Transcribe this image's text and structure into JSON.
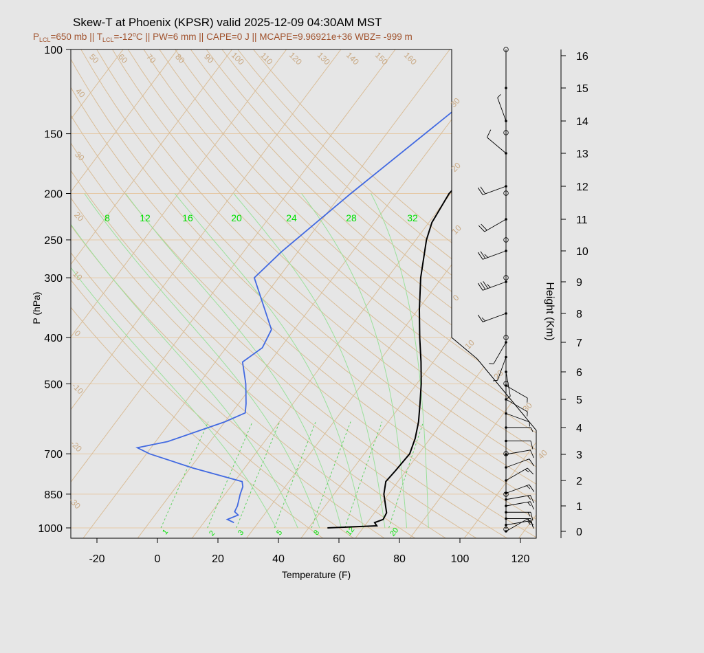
{
  "title": "Skew-T at Phoenix (KPSR) valid 2025-12-09 04:30AM MST",
  "subtitle": {
    "segments": [
      "P",
      "LCL",
      "=650 mb || T",
      "LCL",
      "=-12",
      "o",
      "C || PW=6 mm || CAPE=0 J || MCAPE=9.96921e+36 WBZ= -999 m"
    ]
  },
  "chart_data": {
    "type": "line",
    "xlabel": "Temperature (F)",
    "ylabel": "P (hPa)",
    "y2label": "Height (Km)",
    "xlim": [
      -28,
      125
    ],
    "ylim": [
      1000,
      100
    ],
    "xticks": [
      -20,
      0,
      20,
      40,
      60,
      80,
      100,
      120
    ],
    "xtick_labels": [
      "-20",
      "0",
      "20",
      "40",
      "60",
      "80",
      "100",
      "120"
    ],
    "yticks": [
      100,
      150,
      200,
      250,
      300,
      400,
      500,
      700,
      850,
      1000
    ],
    "ytick_labels": [
      "100",
      "150",
      "200",
      "250",
      "300",
      "400",
      "500",
      "700",
      "850",
      "1000"
    ],
    "height_ticks_km": [
      0,
      1,
      2,
      3,
      4,
      5,
      6,
      7,
      8,
      9,
      10,
      11,
      12,
      13,
      14,
      15,
      16
    ],
    "height_tick_labels": [
      "0",
      "1",
      "2",
      "3",
      "4",
      "5",
      "6",
      "7",
      "8",
      "9",
      "10",
      "11",
      "12",
      "13",
      "14",
      "15",
      "16"
    ],
    "mixing_ratio_top_labels": [
      "8",
      "12",
      "16",
      "20",
      "24",
      "28",
      "32"
    ],
    "mixing_ratio_bottom_labels": [
      "1",
      "2",
      "3",
      "5",
      "8",
      "12",
      "20"
    ],
    "isotherm_labels": [
      "-20",
      "-10",
      "0",
      "10",
      "20",
      "30",
      "40"
    ],
    "isotherm_label_values": [
      -20,
      -10,
      0,
      10,
      20,
      30,
      40
    ],
    "left_isotherm_labels": [
      "40",
      "30",
      "20",
      "10",
      "0",
      "-10",
      "-20",
      "-30"
    ],
    "dry_adiabat_labels": [
      "50",
      "60",
      "70",
      "80",
      "90",
      "100",
      "110",
      "120",
      "130",
      "140",
      "150",
      "160"
    ],
    "series": [
      {
        "name": "Temperature",
        "color": "#000000",
        "points": [
          [
            1000,
            56.2
          ],
          [
            990,
            72.0
          ],
          [
            975,
            70.5
          ],
          [
            960,
            72.5
          ],
          [
            930,
            72.0
          ],
          [
            900,
            70.0
          ],
          [
            850,
            66.5
          ],
          [
            800,
            64.0
          ],
          [
            760,
            64.5
          ],
          [
            700,
            65.0
          ],
          [
            650,
            63.0
          ],
          [
            600,
            60.0
          ],
          [
            550,
            56.0
          ],
          [
            500,
            51.5
          ],
          [
            450,
            46.0
          ],
          [
            400,
            39.5
          ],
          [
            350,
            32.5
          ],
          [
            300,
            25.0
          ],
          [
            250,
            17.5
          ],
          [
            230,
            15.0
          ],
          [
            200,
            13.5
          ],
          [
            165,
            16.0
          ],
          [
            140,
            20.0
          ],
          [
            120,
            27.0
          ],
          [
            100,
            35.0
          ]
        ]
      },
      {
        "name": "Dew point",
        "color": "#4169e1",
        "points": [
          [
            975,
            24.0
          ],
          [
            960,
            21.0
          ],
          [
            940,
            23.5
          ],
          [
            925,
            21.5
          ],
          [
            900,
            21.0
          ],
          [
            850,
            19.0
          ],
          [
            820,
            18.0
          ],
          [
            800,
            16.5
          ],
          [
            750,
            -3.0
          ],
          [
            700,
            -21.0
          ],
          [
            680,
            -26.5
          ],
          [
            660,
            -18.0
          ],
          [
            600,
            -4.0
          ],
          [
            575,
            0.5
          ],
          [
            550,
            -1.5
          ],
          [
            500,
            -6.5
          ],
          [
            450,
            -13.0
          ],
          [
            420,
            -10.0
          ],
          [
            385,
            -11.5
          ],
          [
            300,
            -30.0
          ],
          [
            265,
            -27.5
          ],
          [
            200,
            -19.0
          ],
          [
            132,
            -5.0
          ],
          [
            100,
            2.0
          ]
        ]
      }
    ],
    "hodograph_barbs": {
      "levels_km": [
        0.0,
        0.25,
        0.5,
        0.75,
        1.0,
        1.25,
        1.5,
        2.0,
        2.5,
        3.0,
        3.5,
        4.0,
        4.5,
        5.0,
        5.5,
        6.0,
        6.5,
        7.0,
        8.0,
        9.0,
        10.0,
        11.0,
        12.0,
        13.0,
        14.0,
        15.0
      ],
      "speeds_kt": [
        10,
        15,
        15,
        15,
        15,
        15,
        15,
        15,
        10,
        10,
        10,
        5,
        5,
        5,
        5,
        5,
        5,
        5,
        15,
        35,
        25,
        20,
        20,
        10,
        5,
        0
      ],
      "directions_deg": [
        60,
        80,
        90,
        90,
        80,
        80,
        70,
        60,
        70,
        80,
        90,
        90,
        110,
        120,
        120,
        170,
        200,
        210,
        250,
        250,
        250,
        240,
        250,
        310,
        340,
        360
      ]
    }
  }
}
